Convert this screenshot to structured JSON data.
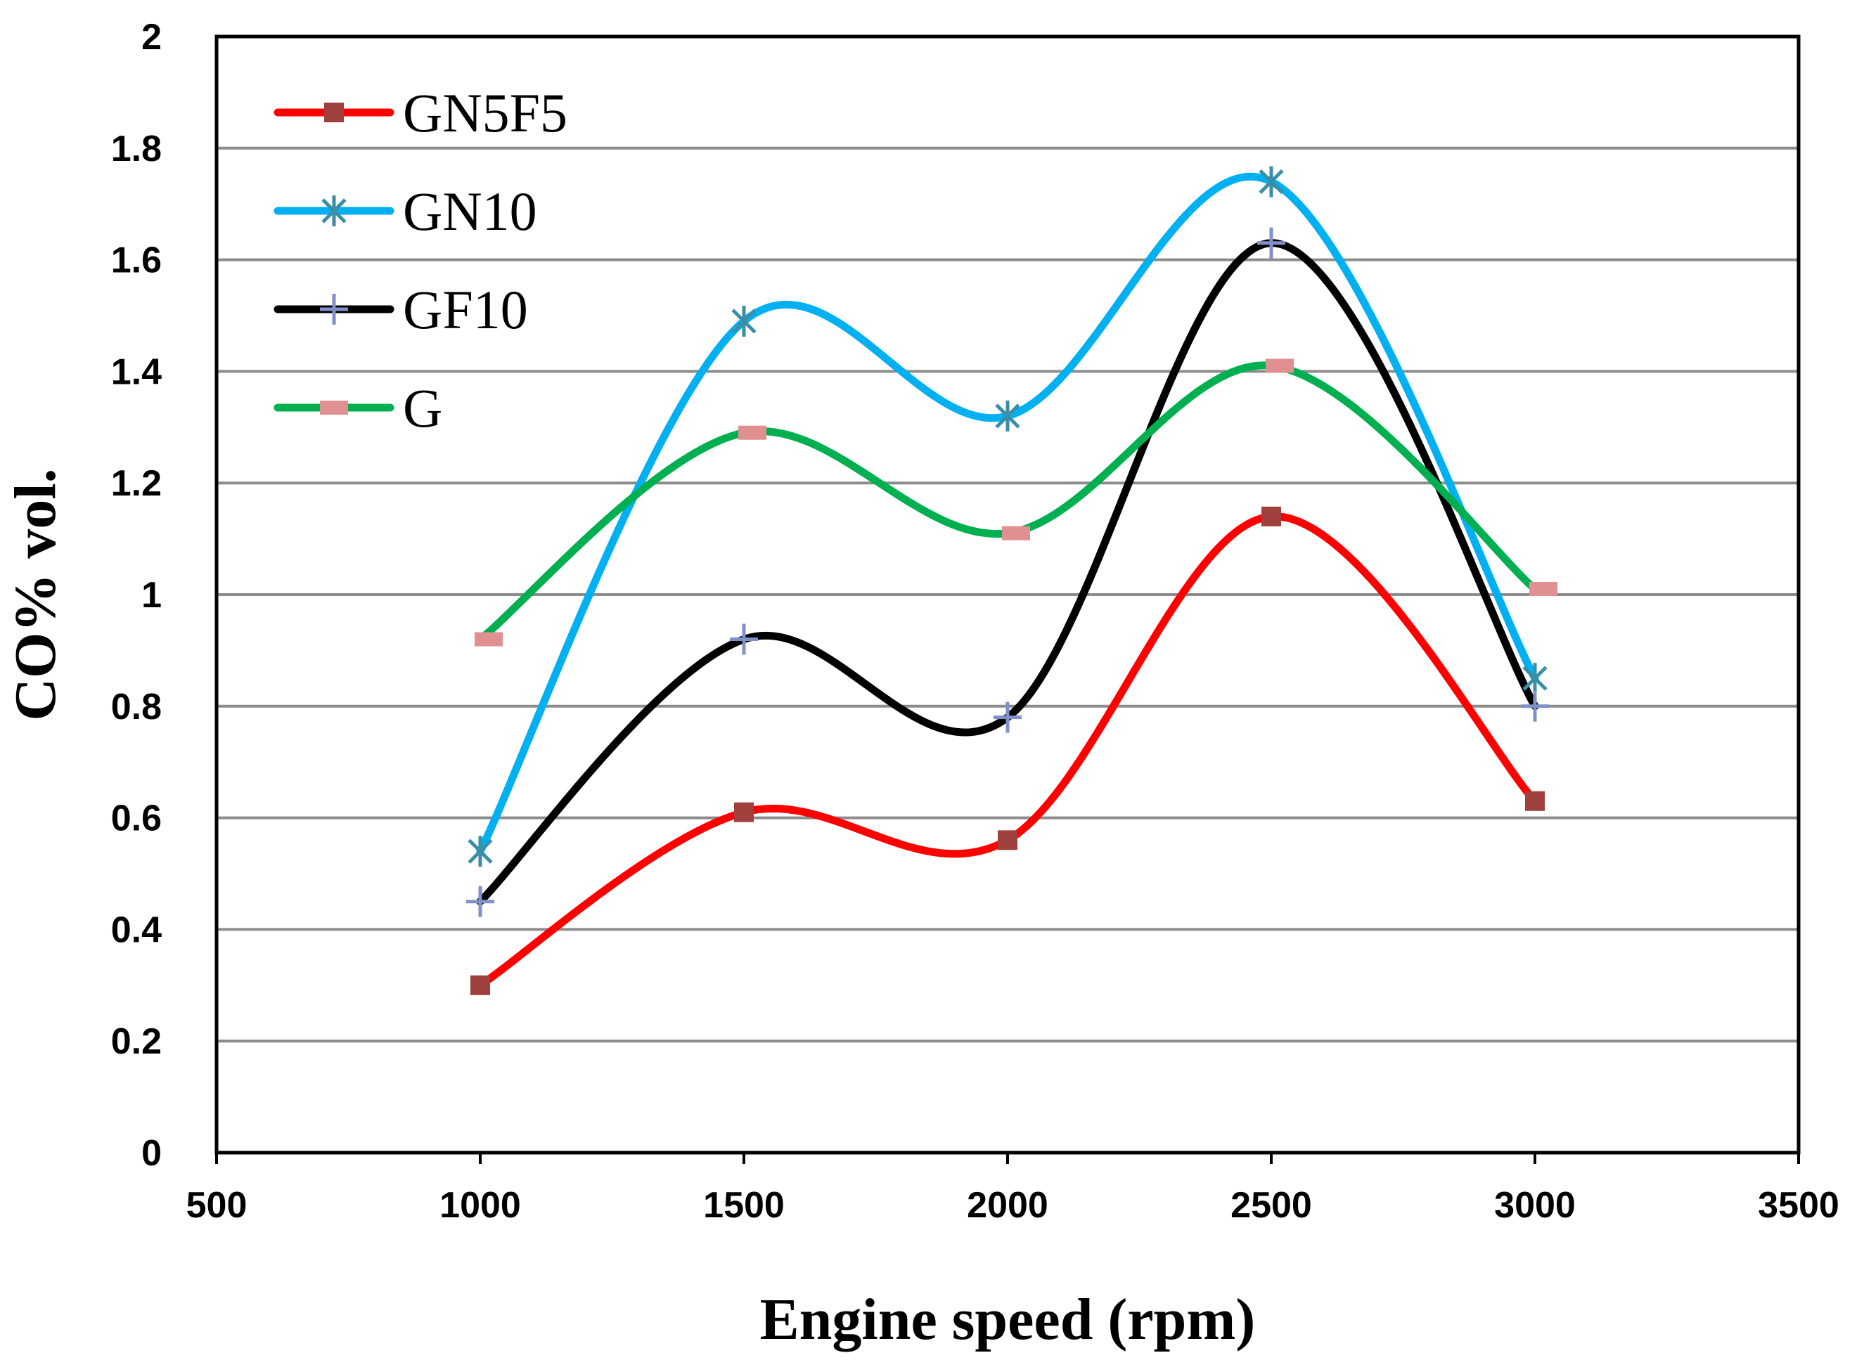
{
  "chart_data": {
    "type": "line",
    "title": "",
    "xlabel": "Engine speed (rpm)",
    "ylabel": "CO% vol.",
    "xlim": [
      500,
      3500
    ],
    "ylim": [
      0,
      2
    ],
    "xticks": [
      500,
      1000,
      1500,
      2000,
      2500,
      3000,
      3500
    ],
    "yticks": [
      0,
      0.2,
      0.4,
      0.6,
      0.8,
      1,
      1.2,
      1.4,
      1.6,
      1.8,
      2
    ],
    "xtick_labels": [
      "500",
      "1000",
      "1500",
      "2000",
      "2500",
      "3000",
      "3500"
    ],
    "ytick_labels": [
      "0",
      "0.2",
      "0.4",
      "0.6",
      "0.8",
      "1",
      "1.2",
      "1.4",
      "1.6",
      "1.8",
      "2"
    ],
    "grid": "horizontal",
    "smooth": true,
    "legend_position": "top-left",
    "x": [
      1000,
      1500,
      2000,
      2500,
      3000
    ],
    "series": [
      {
        "name": "GN5F5",
        "values": [
          0.3,
          0.61,
          0.56,
          1.14,
          0.63
        ],
        "line_color": "#ff0000",
        "marker": "square",
        "marker_color": "#a0403c"
      },
      {
        "name": "GN10",
        "values": [
          0.54,
          1.49,
          1.32,
          1.74,
          0.85
        ],
        "line_color": "#00b0f0",
        "marker": "asterisk",
        "marker_color": "#3a8fa6"
      },
      {
        "name": "GF10",
        "values": [
          0.45,
          0.92,
          0.78,
          1.63,
          0.8
        ],
        "line_color": "#000000",
        "marker": "plus",
        "marker_color": "#8090c8"
      },
      {
        "name": "G",
        "values": [
          0.92,
          1.29,
          1.11,
          1.41,
          1.01
        ],
        "line_color": "#00b050",
        "marker": "dash",
        "marker_color": "#e09090"
      }
    ]
  }
}
